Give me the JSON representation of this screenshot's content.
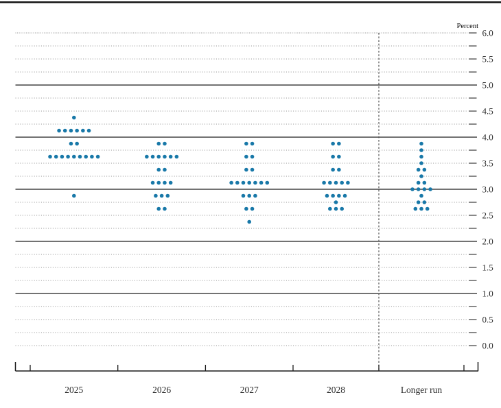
{
  "chart_data": {
    "type": "scatter",
    "description": "Dot plot of policy rate projections (midpoint of target range or target level), in percent",
    "ylabel": "Percent",
    "categories": [
      "2025",
      "2026",
      "2027",
      "2028",
      "Longer run"
    ],
    "y_axis": {
      "min": 0.0,
      "max": 6.0,
      "label_step": 0.5,
      "grid_step": 0.25,
      "solid_lines": [
        1.0,
        2.0,
        3.0,
        4.0,
        5.0
      ],
      "tick_labels": [
        "6.0",
        "5.5",
        "5.0",
        "4.5",
        "4.0",
        "3.5",
        "3.0",
        "2.5",
        "2.0",
        "1.5",
        "1.0",
        "0.5",
        "0.0"
      ]
    },
    "dots_per_category": 19,
    "series": [
      {
        "category": "2025",
        "dots": [
          {
            "rate": 4.375,
            "count": 1
          },
          {
            "rate": 4.125,
            "count": 6
          },
          {
            "rate": 3.875,
            "count": 2
          },
          {
            "rate": 3.625,
            "count": 9
          },
          {
            "rate": 2.875,
            "count": 1
          }
        ]
      },
      {
        "category": "2026",
        "dots": [
          {
            "rate": 3.875,
            "count": 2
          },
          {
            "rate": 3.625,
            "count": 6
          },
          {
            "rate": 3.375,
            "count": 2
          },
          {
            "rate": 3.125,
            "count": 4
          },
          {
            "rate": 2.875,
            "count": 3
          },
          {
            "rate": 2.625,
            "count": 2
          }
        ]
      },
      {
        "category": "2027",
        "dots": [
          {
            "rate": 3.875,
            "count": 2
          },
          {
            "rate": 3.625,
            "count": 2
          },
          {
            "rate": 3.375,
            "count": 2
          },
          {
            "rate": 3.125,
            "count": 7
          },
          {
            "rate": 2.875,
            "count": 3
          },
          {
            "rate": 2.625,
            "count": 2
          },
          {
            "rate": 2.375,
            "count": 1
          }
        ]
      },
      {
        "category": "2028",
        "dots": [
          {
            "rate": 3.875,
            "count": 2
          },
          {
            "rate": 3.625,
            "count": 2
          },
          {
            "rate": 3.375,
            "count": 2
          },
          {
            "rate": 3.125,
            "count": 5
          },
          {
            "rate": 2.875,
            "count": 4
          },
          {
            "rate": 2.75,
            "count": 1
          },
          {
            "rate": 2.625,
            "count": 3
          }
        ]
      },
      {
        "category": "Longer run",
        "dots": [
          {
            "rate": 3.875,
            "count": 1
          },
          {
            "rate": 3.75,
            "count": 1
          },
          {
            "rate": 3.625,
            "count": 1
          },
          {
            "rate": 3.5,
            "count": 1
          },
          {
            "rate": 3.375,
            "count": 2
          },
          {
            "rate": 3.25,
            "count": 1
          },
          {
            "rate": 3.125,
            "count": 2
          },
          {
            "rate": 3.0,
            "count": 4
          },
          {
            "rate": 2.875,
            "count": 1
          },
          {
            "rate": 2.75,
            "count": 2
          },
          {
            "rate": 2.625,
            "count": 3
          }
        ]
      }
    ],
    "legend_position": "none",
    "grid": "on",
    "colors": {
      "dot": "#1878a8",
      "solid_line": "#1f1f1f",
      "dotted_line": "#8e8e8e",
      "end_dash": "#3a3a3a",
      "axis": "#1a1a1a",
      "label_text": "#2b2b2b",
      "separator": "#555555",
      "top_rule": "#141414"
    }
  }
}
